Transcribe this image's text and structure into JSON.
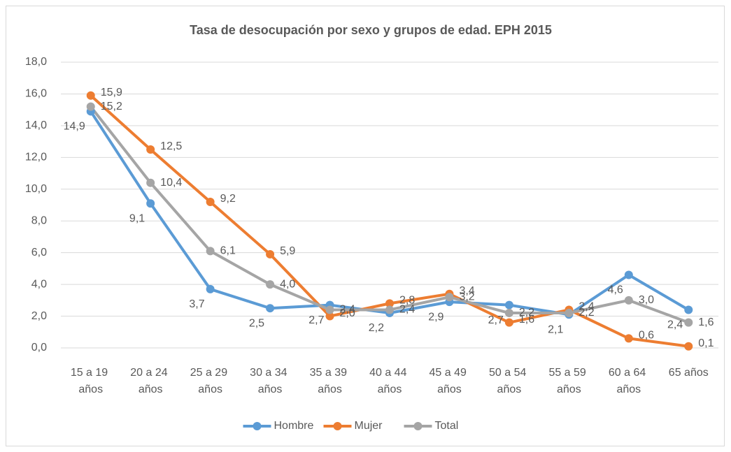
{
  "chart_data": {
    "type": "line",
    "title": "Tasa de desocupación por sexo y grupos de edad. EPH 2015",
    "categories": [
      "15 a 19 años",
      "20 a 24 años",
      "25 a 29 años",
      "30 a 34 años",
      "35 a 39 años",
      "40 a 44 años",
      "45 a 49 años",
      "50 a 54 años",
      "55 a 59 años",
      "60 a 64 años",
      "65 años"
    ],
    "series": [
      {
        "name": "Hombre",
        "color": "#5b9bd5",
        "values": [
          14.9,
          9.1,
          3.7,
          2.5,
          2.7,
          2.2,
          2.9,
          2.7,
          2.1,
          4.6,
          2.4
        ],
        "value_labels": [
          "14,9",
          "9,1",
          "3,7",
          "2,5",
          "2,7",
          "2,2",
          "2,9",
          "2,7",
          "2,1",
          "4,6",
          "2,4"
        ]
      },
      {
        "name": "Mujer",
        "color": "#ed7d31",
        "values": [
          15.9,
          12.5,
          9.2,
          5.9,
          2.0,
          2.8,
          3.4,
          1.6,
          2.4,
          0.6,
          0.1
        ],
        "value_labels": [
          "15,9",
          "12,5",
          "9,2",
          "5,9",
          "2,0",
          "2,8",
          "3,4",
          "1,6",
          "2,4",
          "0,6",
          "0,1"
        ]
      },
      {
        "name": "Total",
        "color": "#a5a5a5",
        "values": [
          15.2,
          10.4,
          6.1,
          4.0,
          2.4,
          2.4,
          3.2,
          2.2,
          2.2,
          3.0,
          1.6
        ],
        "value_labels": [
          "15,2",
          "10,4",
          "6,1",
          "4,0",
          "2,4",
          "2,4",
          "3,2",
          "2,2",
          "2,2",
          "3,0",
          "1,6"
        ]
      }
    ],
    "ylim": [
      0,
      18
    ],
    "yticks": [
      {
        "value": 0,
        "label": "0,0"
      },
      {
        "value": 2,
        "label": "2,0"
      },
      {
        "value": 4,
        "label": "4,0"
      },
      {
        "value": 6,
        "label": "6,0"
      },
      {
        "value": 8,
        "label": "8,0"
      },
      {
        "value": 10,
        "label": "10,0"
      },
      {
        "value": 12,
        "label": "12,0"
      },
      {
        "value": 14,
        "label": "14,0"
      },
      {
        "value": 16,
        "label": "16,0"
      },
      {
        "value": 18,
        "label": "18,0"
      }
    ],
    "grid": true,
    "legend": "bottom"
  }
}
